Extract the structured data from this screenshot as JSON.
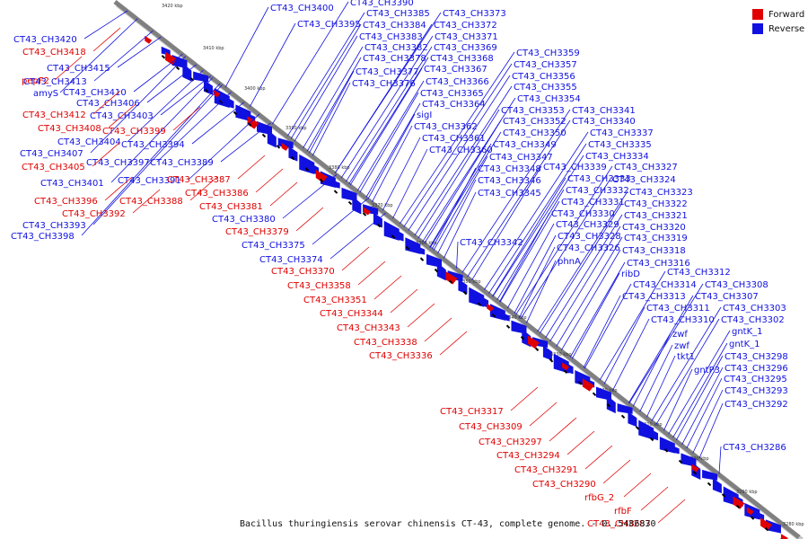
{
  "legend": {
    "forward_label": "Forward",
    "reverse_label": "Reverse"
  },
  "colors": {
    "forward": "#e00000",
    "reverse": "#1010e0",
    "axis": "#808080",
    "tick": "#000000"
  },
  "caption": "Bacillus thuringiensis serovar chinensis CT-43, complete genome. - 0..5486830",
  "axis": {
    "ticks": [
      {
        "text": "3420 kbp"
      },
      {
        "text": "3410 kbp"
      },
      {
        "text": "3400 kbp"
      },
      {
        "text": "3390 kbp"
      },
      {
        "text": "3380 kbp"
      },
      {
        "text": "3370 kbp"
      },
      {
        "text": "3360 kbp"
      },
      {
        "text": "3350 kbp"
      },
      {
        "text": "3340 kbp"
      },
      {
        "text": "3330 kbp"
      },
      {
        "text": "3320 kbp"
      },
      {
        "text": "3310 kbp"
      },
      {
        "text": "3300 kbp"
      },
      {
        "text": "3290 kbp"
      },
      {
        "text": "3280 kbp"
      }
    ]
  },
  "reverse_labels": [
    "CT43_CH3400",
    "CT43_CH3390",
    "CT43_CH3385",
    "CT43_CH3373",
    "CT43_CH3395",
    "CT43_CH3384",
    "CT43_CH3372",
    "CT43_CH3383",
    "CT43_CH3371",
    "CT43_CH3382",
    "CT43_CH3369",
    "CT43_CH3378",
    "CT43_CH3368",
    "CT43_CH3377",
    "CT43_CH3367",
    "CT43_CH3376",
    "CT43_CH3366",
    "CT43_CH3365",
    "CT43_CH3364",
    "sigI",
    "CT43_CH3362",
    "CT43_CH3361",
    "CT43_CH3360",
    "CT43_CH3359",
    "CT43_CH3357",
    "CT43_CH3356",
    "CT43_CH3355",
    "CT43_CH3354",
    "CT43_CH3353",
    "CT43_CH3352",
    "CT43_CH3350",
    "CT43_CH3349",
    "CT43_CH3347",
    "CT43_CH3348",
    "CT43_CH3346",
    "CT43_CH3345",
    "CT43_CH3342",
    "CT43_CH3341",
    "CT43_CH3340",
    "CT43_CH3337",
    "CT43_CH3335",
    "CT43_CH3334",
    "CT43_CH3339",
    "CT43_CH3333",
    "CT43_CH3332",
    "CT43_CH3331",
    "CT43_CH3330",
    "CT43_CH3329",
    "CT43_CH3328",
    "CT43_CH3326",
    "phnA",
    "CT43_CH3327",
    "CT43_CH3324",
    "CT43_CH3323",
    "CT43_CH3322",
    "CT43_CH3321",
    "CT43_CH3320",
    "CT43_CH3319",
    "CT43_CH3318",
    "CT43_CH3316",
    "ribD",
    "CT43_CH3312",
    "CT43_CH3314",
    "CT43_CH3308",
    "CT43_CH3313",
    "CT43_CH3307",
    "CT43_CH3311",
    "CT43_CH3303",
    "CT43_CH3310",
    "CT43_CH3302",
    "zwf",
    "gntK_1",
    "zwf",
    "gntK_1",
    "tkt1",
    "CT43_CH3298",
    "gntP3",
    "CT43_CH3296",
    "CT43_CH3295",
    "CT43_CH3293",
    "CT43_CH3292",
    "CT43_CH3286",
    "CT43_CH3420",
    "CT43_CH3415",
    "amyS",
    "CT43_CH3413",
    "CT43_CH3410",
    "CT43_CH3406",
    "CT43_CH3403",
    "CT43_CH3404",
    "CT43_CH3407",
    "CT43_CH3394",
    "CT43_CH3397",
    "CT43_CH3389",
    "CT43_CH3401",
    "CT43_CH3391",
    "CT43_CH3380",
    "CT43_CH3375",
    "CT43_CH3374",
    "CT43_CH3393",
    "CT43_CH3398"
  ],
  "forward_labels": [
    "CT43_CH3418",
    "pepF2",
    "CT43_CH3412",
    "CT43_CH3408",
    "CT43_CH3399",
    "CT43_CH3405",
    "CT43_CH3387",
    "CT43_CH3386",
    "CT43_CH3396",
    "CT43_CH3388",
    "CT43_CH3381",
    "CT43_CH3392",
    "CT43_CH3379",
    "CT43_CH3370",
    "CT43_CH3358",
    "CT43_CH3351",
    "CT43_CH3344",
    "CT43_CH3343",
    "CT43_CH3338",
    "CT43_CH3336",
    "CT43_CH3317",
    "CT43_CH3309",
    "CT43_CH3297",
    "CT43_CH3294",
    "CT43_CH3291",
    "CT43_CH3290",
    "rfbG_2",
    "rfbF",
    "CT43_CH3287"
  ]
}
